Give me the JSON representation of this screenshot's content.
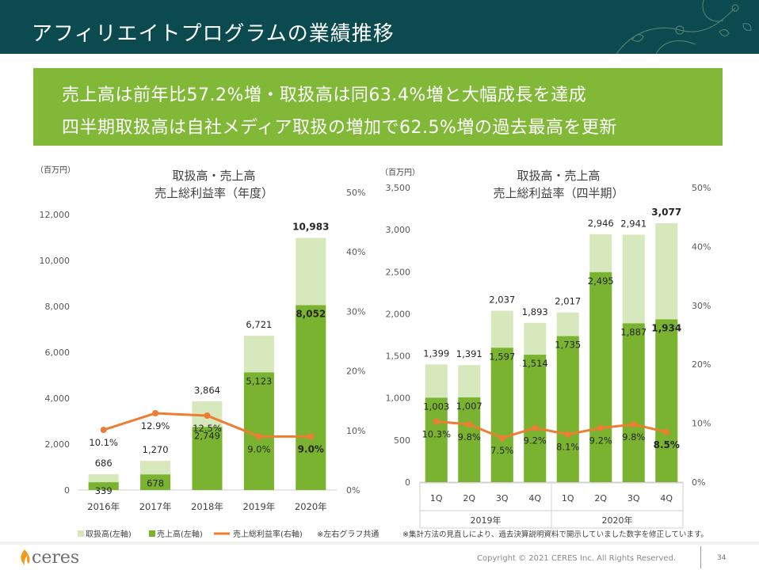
{
  "slide": {
    "title": "アフィリエイトプログラムの業績推移",
    "banner_line1": "売上高は前年比57.2%増・取扱高は同63.4%増と大幅成長を達成",
    "banner_line2": "四半期取扱高は自社メディア取扱の増加で62.5%増の過去最高を更新",
    "legend_handled": "取扱高(左軸)",
    "legend_sales": "売上高(左軸)",
    "legend_rate": "売上総利益率(右軸)",
    "legend_note": "※左右グラフ共通",
    "footnote": "※集計方法の見直しにより、過去決算説明資料で開示していました数字を修正しています。",
    "copyright": "Copyright © 2021 CERES Inc. All Rights Reserved.",
    "page_number": "34",
    "logo_text": "ceres"
  },
  "colors": {
    "header_bg": "#0b4a4f",
    "banner_bg": "#82b838",
    "handled": "#d6e8bc",
    "sales": "#7ab330",
    "rate_line": "#ed7d31"
  },
  "chart_data": [
    {
      "type": "bar",
      "title_line1": "取扱高・売上高",
      "title_line2": "売上総利益率（年度）",
      "unit_label": "（百万円）",
      "categories": [
        "2016年",
        "2017年",
        "2018年",
        "2019年",
        "2020年"
      ],
      "series": [
        {
          "name": "取扱高(左軸)",
          "axis": "left",
          "values": [
            686,
            1270,
            3864,
            6721,
            10983
          ],
          "labels": [
            "686",
            "1,270",
            "3,864",
            "6,721",
            "10,983"
          ]
        },
        {
          "name": "売上高(左軸)",
          "axis": "left",
          "values": [
            339,
            678,
            2749,
            5123,
            8052
          ],
          "labels": [
            "339",
            "678",
            "2,749",
            "5,123",
            "8,052"
          ]
        },
        {
          "name": "売上総利益率(右軸)",
          "axis": "right",
          "type": "line",
          "values": [
            10.1,
            12.9,
            12.5,
            9.0,
            9.0
          ],
          "labels": [
            "10.1%",
            "12.9%",
            "12.5%",
            "9.0%",
            "9.0%"
          ]
        }
      ],
      "ylim_left": [
        0,
        12000
      ],
      "yticks_left": [
        "0",
        "2,000",
        "4,000",
        "6,000",
        "8,000",
        "10,000",
        "12,000"
      ],
      "ylim_right": [
        0,
        50
      ],
      "yticks_right": [
        "0%",
        "10%",
        "20%",
        "30%",
        "40%",
        "50%"
      ],
      "bold_last": true
    },
    {
      "type": "bar",
      "title_line1": "取扱高・売上高",
      "title_line2": "売上総利益率（四半期）",
      "unit_label": "（百万円）",
      "categories": [
        "1Q",
        "2Q",
        "3Q",
        "4Q",
        "1Q",
        "2Q",
        "3Q",
        "4Q"
      ],
      "groups": [
        {
          "label": "2019年",
          "start": 0,
          "end": 3
        },
        {
          "label": "2020年",
          "start": 4,
          "end": 7
        }
      ],
      "series": [
        {
          "name": "取扱高(左軸)",
          "axis": "left",
          "values": [
            1399,
            1391,
            2037,
            1893,
            2017,
            2946,
            2941,
            3077
          ],
          "labels": [
            "1,399",
            "1,391",
            "2,037",
            "1,893",
            "2,017",
            "2,946",
            "2,941",
            "3,077"
          ]
        },
        {
          "name": "売上高(左軸)",
          "axis": "left",
          "values": [
            1003,
            1007,
            1597,
            1514,
            1735,
            2495,
            1887,
            1934
          ],
          "labels": [
            "1,003",
            "1,007",
            "1,597",
            "1,514",
            "1,735",
            "2,495",
            "1,887",
            "1,934"
          ]
        },
        {
          "name": "売上総利益率(右軸)",
          "axis": "right",
          "type": "line",
          "values": [
            10.3,
            9.8,
            7.5,
            9.2,
            8.1,
            9.2,
            9.8,
            8.5
          ],
          "labels": [
            "10.3%",
            "9.8%",
            "7.5%",
            "9.2%",
            "8.1%",
            "9.2%",
            "9.8%",
            "8.5%"
          ]
        }
      ],
      "ylim_left": [
        0,
        3500
      ],
      "yticks_left": [
        "0",
        "500",
        "1,000",
        "1,500",
        "2,000",
        "2,500",
        "3,000",
        "3,500"
      ],
      "ylim_right": [
        0,
        50
      ],
      "yticks_right": [
        "0%",
        "10%",
        "20%",
        "30%",
        "40%",
        "50%"
      ],
      "bold_last": true
    }
  ]
}
